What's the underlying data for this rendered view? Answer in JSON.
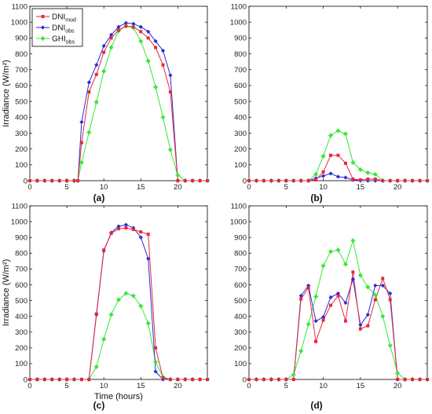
{
  "colors": {
    "mod": "#e8283a",
    "obs": "#2a2ad6",
    "ghi": "#39e639",
    "axis": "#000000"
  },
  "legend": {
    "items": [
      {
        "series": "mod",
        "base": "DNI",
        "sub": "mod"
      },
      {
        "series": "obs",
        "base": "DNI",
        "sub": "obs"
      },
      {
        "series": "ghi",
        "base": "GHI",
        "sub": "obs"
      }
    ]
  },
  "chart_data": [
    {
      "type": "line",
      "panel": "(a)",
      "ylabel": "Irradiance (W/m²)",
      "xlabel": "",
      "xlim": [
        0,
        24
      ],
      "ylim": [
        0,
        1100
      ],
      "xticks": [
        0,
        5,
        10,
        15,
        20
      ],
      "yticks": [
        0,
        100,
        200,
        300,
        400,
        500,
        600,
        700,
        800,
        900,
        1000,
        1100
      ],
      "x": [
        0,
        1,
        2,
        3,
        4,
        5,
        6,
        6.5,
        7,
        7.5,
        8,
        8.5,
        9,
        9.5,
        10,
        10.5,
        11,
        11.5,
        12,
        12.5,
        13,
        13.5,
        14,
        14.5,
        15,
        15.5,
        16,
        16.5,
        17,
        17.5,
        18,
        18.5,
        19,
        19.5,
        20,
        21,
        22,
        23,
        24
      ],
      "series": [
        {
          "key": "mod",
          "name": "DNImod",
          "values": [
            0,
            0,
            0,
            0,
            0,
            0,
            0,
            0,
            240,
            null,
            560,
            null,
            670,
            null,
            810,
            null,
            900,
            null,
            950,
            null,
            975,
            null,
            970,
            null,
            940,
            null,
            900,
            null,
            840,
            null,
            730,
            null,
            560,
            null,
            0,
            0,
            0,
            0,
            0
          ]
        },
        {
          "key": "obs",
          "name": "DNIobs",
          "values": [
            0,
            0,
            0,
            0,
            0,
            0,
            0,
            0,
            370,
            null,
            620,
            null,
            730,
            null,
            850,
            null,
            920,
            null,
            970,
            null,
            995,
            null,
            990,
            null,
            970,
            null,
            940,
            null,
            880,
            null,
            820,
            null,
            665,
            null,
            0,
            0,
            0,
            0,
            0
          ]
        },
        {
          "key": "ghi",
          "name": "GHIobs",
          "values": [
            0,
            0,
            0,
            0,
            0,
            0,
            0,
            0,
            115,
            null,
            305,
            null,
            495,
            null,
            690,
            null,
            840,
            null,
            945,
            null,
            975,
            null,
            965,
            null,
            880,
            null,
            755,
            null,
            590,
            null,
            400,
            null,
            195,
            null,
            35,
            0,
            0,
            0,
            0
          ]
        }
      ]
    },
    {
      "type": "line",
      "panel": "(b)",
      "ylabel": "",
      "xlabel": "",
      "xlim": [
        0,
        24
      ],
      "ylim": [
        0,
        1100
      ],
      "xticks": [
        0,
        5,
        10,
        15,
        20
      ],
      "yticks": [
        0,
        100,
        200,
        300,
        400,
        500,
        600,
        700,
        800,
        900,
        1000,
        1100
      ],
      "x": [
        0,
        1,
        2,
        3,
        4,
        5,
        6,
        7,
        8,
        9,
        10,
        11,
        12,
        13,
        14,
        15,
        16,
        17,
        18,
        19,
        20,
        21,
        22,
        23,
        24
      ],
      "series": [
        {
          "key": "mod",
          "name": "DNImod",
          "values": [
            0,
            0,
            0,
            0,
            0,
            0,
            0,
            0,
            0,
            5,
            55,
            160,
            160,
            110,
            10,
            5,
            10,
            10,
            0,
            0,
            0,
            0,
            0,
            0,
            0
          ]
        },
        {
          "key": "obs",
          "name": "DNIobs",
          "values": [
            0,
            0,
            0,
            0,
            0,
            0,
            0,
            0,
            0,
            15,
            30,
            45,
            25,
            20,
            5,
            0,
            0,
            0,
            0,
            0,
            0,
            0,
            0,
            0,
            0
          ]
        },
        {
          "key": "ghi",
          "name": "GHIobs",
          "values": [
            0,
            0,
            0,
            0,
            0,
            0,
            0,
            0,
            0,
            40,
            155,
            285,
            315,
            295,
            115,
            70,
            50,
            40,
            0,
            0,
            0,
            0,
            0,
            0,
            0
          ]
        }
      ]
    },
    {
      "type": "line",
      "panel": "(c)",
      "ylabel": "Irradiance (W/m²)",
      "xlabel": "Time (hours)",
      "xlim": [
        0,
        24
      ],
      "ylim": [
        0,
        1100
      ],
      "xticks": [
        0,
        5,
        10,
        15,
        20
      ],
      "yticks": [
        0,
        100,
        200,
        300,
        400,
        500,
        600,
        700,
        800,
        900,
        1000,
        1100
      ],
      "x": [
        0,
        1,
        2,
        3,
        4,
        5,
        6,
        7,
        8,
        9,
        10,
        11,
        12,
        13,
        14,
        15,
        16,
        17,
        18,
        19,
        20,
        21,
        22,
        23,
        24
      ],
      "series": [
        {
          "key": "mod",
          "name": "DNImod",
          "values": [
            0,
            0,
            0,
            0,
            0,
            0,
            0,
            0,
            0,
            415,
            820,
            925,
            955,
            960,
            950,
            935,
            920,
            200,
            10,
            0,
            0,
            0,
            0,
            0,
            0
          ]
        },
        {
          "key": "obs",
          "name": "DNIobs",
          "values": [
            0,
            0,
            0,
            0,
            0,
            0,
            0,
            0,
            0,
            410,
            815,
            930,
            970,
            980,
            960,
            900,
            765,
            50,
            0,
            0,
            0,
            0,
            0,
            0,
            0
          ]
        },
        {
          "key": "ghi",
          "name": "GHIobs",
          "values": [
            0,
            0,
            0,
            0,
            0,
            0,
            0,
            0,
            0,
            80,
            255,
            410,
            505,
            545,
            530,
            465,
            355,
            110,
            15,
            0,
            0,
            0,
            0,
            0,
            0
          ]
        }
      ]
    },
    {
      "type": "line",
      "panel": "(d)",
      "ylabel": "",
      "xlabel": "",
      "xlim": [
        0,
        24
      ],
      "ylim": [
        0,
        1100
      ],
      "xticks": [
        0,
        5,
        10,
        15,
        20
      ],
      "yticks": [
        0,
        100,
        200,
        300,
        400,
        500,
        600,
        700,
        800,
        900,
        1000,
        1100
      ],
      "x": [
        0,
        1,
        2,
        3,
        4,
        5,
        6,
        7,
        8,
        9,
        10,
        11,
        12,
        13,
        14,
        15,
        16,
        17,
        18,
        19,
        20,
        21,
        22,
        23,
        24
      ],
      "series": [
        {
          "key": "mod",
          "name": "DNImod",
          "values": [
            0,
            0,
            0,
            0,
            0,
            0,
            0,
            510,
            580,
            240,
            375,
            470,
            530,
            370,
            680,
            320,
            340,
            505,
            640,
            505,
            0,
            0,
            0,
            0,
            0
          ]
        },
        {
          "key": "obs",
          "name": "DNIobs",
          "values": [
            0,
            0,
            0,
            0,
            0,
            0,
            0,
            530,
            595,
            370,
            395,
            520,
            545,
            485,
            635,
            345,
            410,
            595,
            595,
            545,
            0,
            0,
            0,
            0,
            0
          ]
        },
        {
          "key": "ghi",
          "name": "GHIobs",
          "values": [
            0,
            0,
            0,
            0,
            0,
            0,
            30,
            180,
            350,
            525,
            720,
            810,
            820,
            730,
            880,
            660,
            585,
            535,
            400,
            215,
            40,
            0,
            0,
            0,
            0
          ]
        }
      ]
    }
  ]
}
